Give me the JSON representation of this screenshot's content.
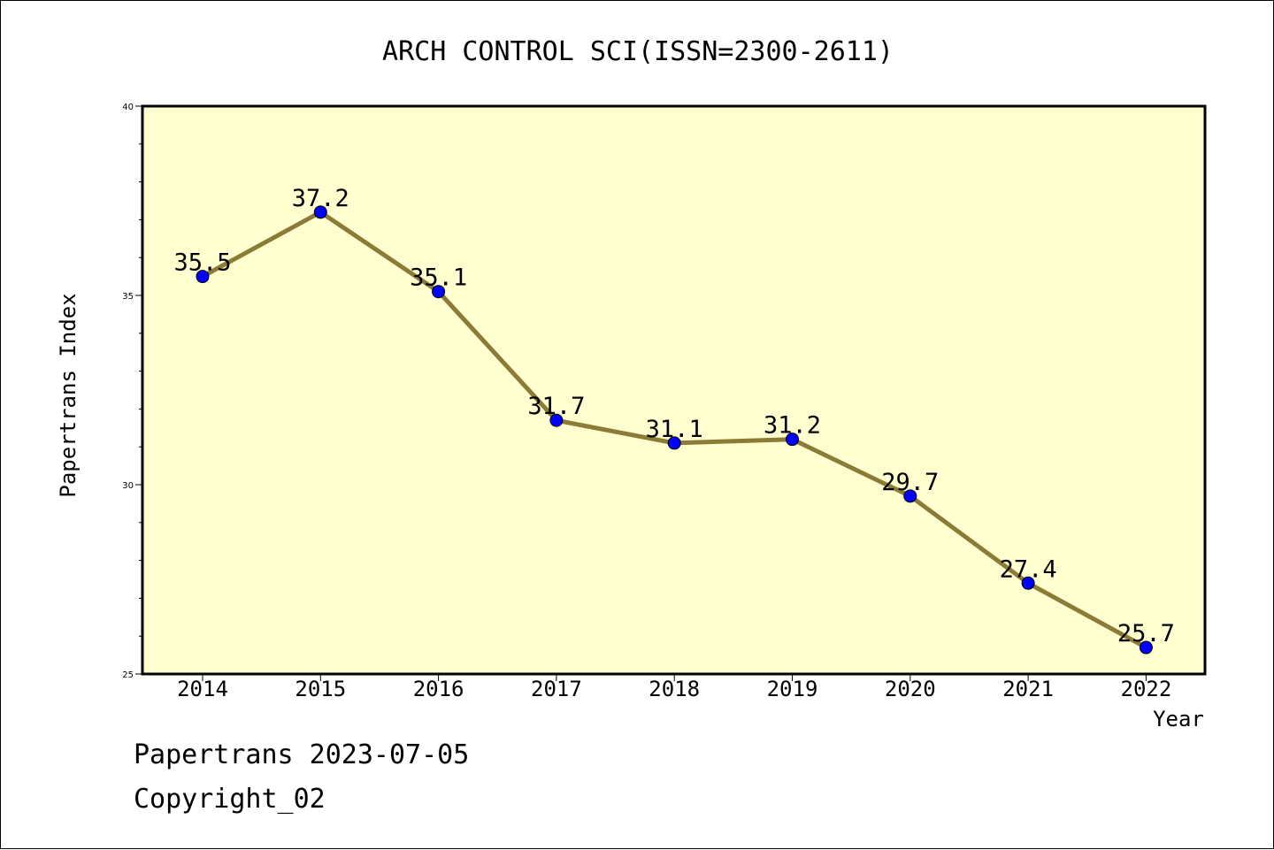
{
  "chart_data": {
    "type": "line",
    "title": "ARCH CONTROL SCI(ISSN=2300-2611)",
    "xlabel": "Year",
    "ylabel": "Papertrans Index",
    "categories": [
      "2014",
      "2015",
      "2016",
      "2017",
      "2018",
      "2019",
      "2020",
      "2021",
      "2022"
    ],
    "series": [
      {
        "values": [
          35.5,
          37.2,
          35.1,
          31.7,
          31.1,
          31.2,
          29.7,
          27.4,
          25.7
        ],
        "labels": [
          "35.5",
          "37.2",
          "35.1",
          "31.7",
          "31.1",
          "31.2",
          "29.7",
          "27.4",
          "25.7"
        ]
      }
    ],
    "ylim": [
      25,
      40
    ],
    "yticks": [
      25,
      30,
      35,
      40
    ],
    "yminor_step": 1,
    "grid": false,
    "colors": {
      "plot_background": "#ffffd0",
      "line": "#8b7b36",
      "marker": "#0000ff"
    }
  },
  "footer": {
    "line1": "Papertrans 2023-07-05",
    "line2": "Copyright_02"
  }
}
